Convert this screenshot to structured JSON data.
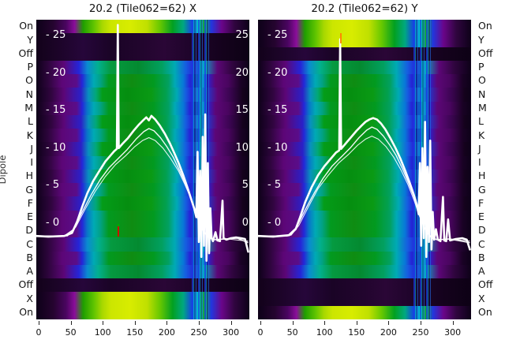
{
  "titles": {
    "left": "20.2 (Tile062=62) X",
    "right": "20.2 (Tile062=62) Y"
  },
  "ylabel": "Dipole",
  "row_labels": [
    "On",
    "Y",
    "Off",
    "P",
    "O",
    "N",
    "M",
    "L",
    "K",
    "J",
    "I",
    "H",
    "G",
    "F",
    "E",
    "D",
    "C",
    "B",
    "A",
    "Off",
    "X",
    "On"
  ],
  "x_ticks": [
    0,
    50,
    100,
    150,
    200,
    250,
    300
  ],
  "inner_y_ticks": [
    {
      "v": 25,
      "left": "- 25",
      "right": "25"
    },
    {
      "v": 20,
      "left": "- 20",
      "right": "20"
    },
    {
      "v": 15,
      "left": "- 15",
      "right": "15"
    },
    {
      "v": 10,
      "left": "- 10",
      "right": "10"
    },
    {
      "v": 5,
      "left": "- 5",
      "right": "5"
    },
    {
      "v": 0,
      "left": "- 0",
      "right": "0"
    }
  ],
  "chart_data": {
    "type": "heatmap",
    "description": "Per-dipole spectra heatmaps (22 beamformer states x frequency channels 0-327) with overlaid white power-vs-channel line plots for X and Y polarisations",
    "x_range": [
      0,
      327
    ],
    "power_tick_levels": [
      25,
      20,
      15,
      10,
      5,
      0
    ],
    "categories": [
      "On",
      "Y",
      "Off",
      "P",
      "O",
      "N",
      "M",
      "L",
      "K",
      "J",
      "I",
      "H",
      "G",
      "F",
      "E",
      "D",
      "C",
      "B",
      "A",
      "Off",
      "X",
      "On"
    ],
    "panels": [
      {
        "name": "X",
        "title": "20.2 (Tile062=62) X",
        "show_right_ticks": true,
        "row_states": [
          "bright",
          "dark",
          "dark",
          "dipA",
          "dipB",
          "dipC",
          "dipB",
          "dipC",
          "dipB",
          "dipC",
          "dipB",
          "dipC",
          "dipB",
          "dipC",
          "dipB",
          "dipB",
          "dipA",
          "dipB",
          "dipA",
          "dark",
          "bright",
          "bright"
        ],
        "curves": [
          {
            "cls": "curve-sub2",
            "pts": [
              [
                -4,
                -1.8
              ],
              [
                45,
                -1.7
              ],
              [
                58,
                -0.5
              ],
              [
                72,
                1.8
              ],
              [
                88,
                4.2
              ],
              [
                104,
                6.2
              ],
              [
                120,
                7.8
              ],
              [
                136,
                9.0
              ],
              [
                150,
                10.2
              ],
              [
                162,
                11.0
              ],
              [
                172,
                11.4
              ],
              [
                182,
                11.0
              ],
              [
                194,
                10.0
              ],
              [
                206,
                8.6
              ],
              [
                218,
                7.0
              ],
              [
                228,
                5.2
              ],
              [
                238,
                3.2
              ],
              [
                246,
                1.4
              ],
              [
                254,
                -0.4
              ],
              [
                262,
                -1.6
              ],
              [
                272,
                -2.2
              ],
              [
                295,
                -2.1
              ],
              [
                327,
                -2.4
              ]
            ]
          },
          {
            "cls": "curve-sub",
            "pts": [
              [
                -4,
                -1.7
              ],
              [
                40,
                -1.7
              ],
              [
                55,
                -0.8
              ],
              [
                68,
                1.5
              ],
              [
                82,
                3.8
              ],
              [
                96,
                5.8
              ],
              [
                110,
                7.4
              ],
              [
                124,
                8.6
              ],
              [
                138,
                9.8
              ],
              [
                152,
                11.2
              ],
              [
                164,
                12.2
              ],
              [
                172,
                12.6
              ],
              [
                180,
                12.3
              ],
              [
                190,
                11.4
              ],
              [
                200,
                10.2
              ],
              [
                210,
                8.8
              ],
              [
                220,
                7.0
              ],
              [
                230,
                5.0
              ],
              [
                238,
                3.2
              ],
              [
                244,
                1.8
              ],
              [
                250,
                0.2
              ],
              [
                258,
                -1.2
              ],
              [
                266,
                -2.0
              ],
              [
                275,
                -2.2
              ],
              [
                290,
                -2.1
              ],
              [
                310,
                -2.0
              ],
              [
                327,
                -2.6
              ]
            ]
          },
          {
            "cls": "curve-main",
            "pts": [
              [
                -4,
                -1.7
              ],
              [
                15,
                -1.8
              ],
              [
                40,
                -1.7
              ],
              [
                52,
                -1.3
              ],
              [
                60,
                0.2
              ],
              [
                68,
                2.2
              ],
              [
                76,
                4.0
              ],
              [
                85,
                5.6
              ],
              [
                95,
                7.0
              ],
              [
                104,
                8.2
              ],
              [
                112,
                9.0
              ],
              [
                118,
                9.6
              ],
              [
                122,
                9.9
              ],
              [
                123.5,
                26.4
              ],
              [
                125,
                10.0
              ],
              [
                131,
                10.6
              ],
              [
                139,
                11.3
              ],
              [
                148,
                12.3
              ],
              [
                156,
                13.1
              ],
              [
                163,
                13.7
              ],
              [
                168,
                14.1
              ],
              [
                172,
                13.7
              ],
              [
                176,
                14.3
              ],
              [
                182,
                13.8
              ],
              [
                189,
                13.0
              ],
              [
                197,
                11.9
              ],
              [
                205,
                10.6
              ],
              [
                212,
                9.3
              ],
              [
                219,
                7.9
              ],
              [
                226,
                6.3
              ],
              [
                232,
                4.8
              ],
              [
                238,
                3.2
              ],
              [
                243,
                1.9
              ],
              [
                246,
                0.8
              ],
              [
                248,
                9.5
              ],
              [
                250,
                -2.5
              ],
              [
                252,
                7.0
              ],
              [
                254,
                -4.5
              ],
              [
                256,
                11.5
              ],
              [
                258,
                -3.0
              ],
              [
                260,
                14.5
              ],
              [
                262,
                -5.0
              ],
              [
                264,
                8.0
              ],
              [
                266,
                -4.0
              ],
              [
                268,
                2.0
              ],
              [
                270,
                -2.0
              ],
              [
                272,
                -2.4
              ],
              [
                276,
                -1.2
              ],
              [
                279,
                -2.3
              ],
              [
                283,
                -2.4
              ],
              [
                287,
                3.0
              ],
              [
                288.5,
                -2.0
              ],
              [
                293,
                -2.2
              ],
              [
                300,
                -2.0
              ],
              [
                308,
                -1.9
              ],
              [
                316,
                -2.0
              ],
              [
                322,
                -2.1
              ],
              [
                327,
                -3.8
              ]
            ]
          }
        ],
        "markers": [
          {
            "x": 103,
            "y": 259,
            "h": 16,
            "top_color": "#00aa00",
            "color": "#cc1100"
          }
        ]
      },
      {
        "name": "Y",
        "title": "20.2 (Tile062=62) Y",
        "show_right_ticks": false,
        "row_states": [
          "bright",
          "bright",
          "dark",
          "dipA",
          "dipB",
          "dipC",
          "dipB",
          "dipC",
          "dipB",
          "dipC",
          "dipB",
          "dipC",
          "dipB",
          "dipC",
          "dipB",
          "dipB",
          "dipA",
          "dipB",
          "dipA",
          "dark",
          "dark",
          "bright"
        ],
        "curves": [
          {
            "cls": "curve-sub2",
            "pts": [
              [
                -4,
                -1.8
              ],
              [
                48,
                -1.6
              ],
              [
                60,
                -0.3
              ],
              [
                75,
                2.2
              ],
              [
                90,
                4.6
              ],
              [
                106,
                6.4
              ],
              [
                122,
                8.0
              ],
              [
                138,
                9.2
              ],
              [
                152,
                10.4
              ],
              [
                164,
                11.2
              ],
              [
                174,
                11.6
              ],
              [
                184,
                11.2
              ],
              [
                196,
                10.2
              ],
              [
                208,
                8.8
              ],
              [
                220,
                7.0
              ],
              [
                230,
                5.2
              ],
              [
                240,
                3.0
              ],
              [
                248,
                1.0
              ],
              [
                256,
                -0.6
              ],
              [
                264,
                -1.8
              ],
              [
                274,
                -2.2
              ],
              [
                295,
                -2.1
              ],
              [
                327,
                -2.4
              ]
            ]
          },
          {
            "cls": "curve-sub",
            "pts": [
              [
                -4,
                -1.7
              ],
              [
                42,
                -1.7
              ],
              [
                56,
                -0.6
              ],
              [
                70,
                1.8
              ],
              [
                84,
                4.0
              ],
              [
                98,
                6.0
              ],
              [
                112,
                7.6
              ],
              [
                126,
                8.8
              ],
              [
                140,
                10.0
              ],
              [
                154,
                11.4
              ],
              [
                166,
                12.4
              ],
              [
                174,
                12.8
              ],
              [
                182,
                12.5
              ],
              [
                192,
                11.6
              ],
              [
                202,
                10.4
              ],
              [
                212,
                9.0
              ],
              [
                222,
                7.2
              ],
              [
                232,
                5.2
              ],
              [
                240,
                3.4
              ],
              [
                246,
                1.8
              ],
              [
                252,
                0.2
              ],
              [
                260,
                -1.2
              ],
              [
                268,
                -2.0
              ],
              [
                278,
                -2.2
              ],
              [
                295,
                -2.1
              ],
              [
                327,
                -2.6
              ]
            ]
          },
          {
            "cls": "curve-main",
            "pts": [
              [
                -4,
                -1.7
              ],
              [
                20,
                -1.8
              ],
              [
                45,
                -1.6
              ],
              [
                55,
                -0.8
              ],
              [
                62,
                0.8
              ],
              [
                70,
                2.8
              ],
              [
                80,
                4.8
              ],
              [
                90,
                6.4
              ],
              [
                100,
                7.6
              ],
              [
                110,
                8.6
              ],
              [
                118,
                9.4
              ],
              [
                123,
                9.7
              ],
              [
                124.5,
                24.5
              ],
              [
                126,
                9.9
              ],
              [
                134,
                10.7
              ],
              [
                142,
                11.5
              ],
              [
                150,
                12.3
              ],
              [
                158,
                13.0
              ],
              [
                164,
                13.5
              ],
              [
                170,
                13.8
              ],
              [
                176,
                14.0
              ],
              [
                182,
                13.8
              ],
              [
                188,
                13.3
              ],
              [
                195,
                12.5
              ],
              [
                203,
                11.3
              ],
              [
                211,
                10.0
              ],
              [
                219,
                8.5
              ],
              [
                226,
                7.0
              ],
              [
                233,
                5.4
              ],
              [
                239,
                3.9
              ],
              [
                244,
                2.5
              ],
              [
                247,
                1.2
              ],
              [
                249,
                8.0
              ],
              [
                251,
                -3.0
              ],
              [
                253,
                10.0
              ],
              [
                255,
                -2.0
              ],
              [
                257,
                13.5
              ],
              [
                259,
                -4.5
              ],
              [
                261,
                7.5
              ],
              [
                263,
                -2.5
              ],
              [
                265,
                11.0
              ],
              [
                267,
                -3.5
              ],
              [
                269,
                1.5
              ],
              [
                271,
                -2.2
              ],
              [
                274,
                -0.8
              ],
              [
                277,
                -2.2
              ],
              [
                281,
                -2.4
              ],
              [
                285,
                3.5
              ],
              [
                287,
                -2.3
              ],
              [
                290,
                -2.4
              ],
              [
                293,
                0.5
              ],
              [
                296,
                -2.3
              ],
              [
                305,
                -2.1
              ],
              [
                315,
                -2.0
              ],
              [
                322,
                -2.2
              ],
              [
                327,
                -3.5
              ]
            ]
          }
        ],
        "markers": [
          {
            "x": 104,
            "y": 17,
            "h": 13,
            "top_color": "#ff8800",
            "color": "#ff8800"
          }
        ]
      }
    ]
  }
}
